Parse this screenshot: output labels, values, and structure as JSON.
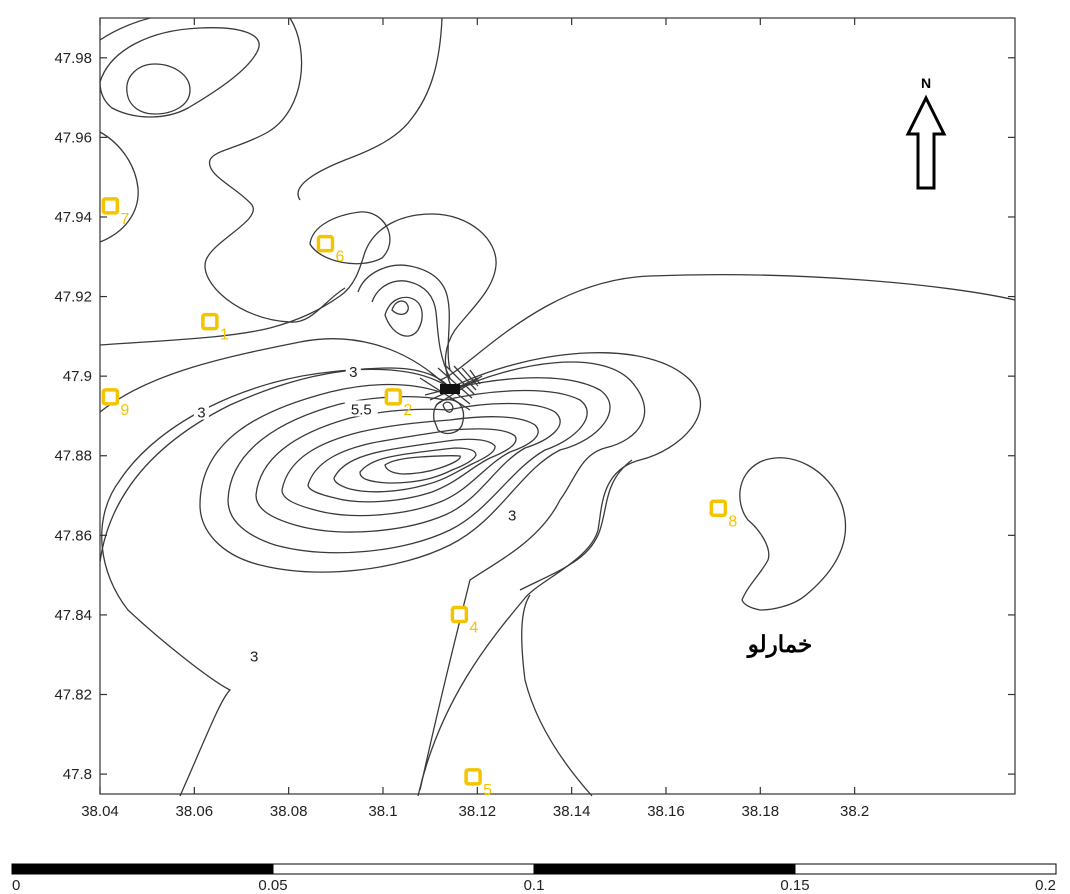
{
  "map": {
    "x_ticks": [
      "38.04",
      "38.06",
      "38.08",
      "38.1",
      "38.12",
      "38.14",
      "38.16",
      "38.18",
      "38.2"
    ],
    "y_ticks": [
      "47.98",
      "47.96",
      "47.94",
      "47.92",
      "47.9",
      "47.88",
      "47.86",
      "47.84",
      "47.82",
      "47.8"
    ],
    "x_range": [
      38.04,
      38.234
    ],
    "y_range": [
      47.795,
      47.99
    ],
    "north_label": "N",
    "place_name": "خمارلو",
    "contour_labels": [
      {
        "text": "3",
        "x": 38.0615,
        "y": 47.8906
      },
      {
        "text": "3",
        "x": 38.0937,
        "y": 47.9008
      },
      {
        "text": "5.5",
        "x": 38.0954,
        "y": 47.8914
      },
      {
        "text": "3",
        "x": 38.1274,
        "y": 47.8647
      },
      {
        "text": "3",
        "x": 38.0727,
        "y": 47.8293
      }
    ],
    "wells": [
      {
        "id": "1",
        "x": 38.0633,
        "y": 47.9137
      },
      {
        "id": "2",
        "x": 38.1022,
        "y": 47.8948
      },
      {
        "id": "4",
        "x": 38.1162,
        "y": 47.8401
      },
      {
        "id": "5",
        "x": 38.1191,
        "y": 47.7993
      },
      {
        "id": "6",
        "x": 38.0878,
        "y": 47.9333
      },
      {
        "id": "7",
        "x": 38.0422,
        "y": 47.9428
      },
      {
        "id": "8",
        "x": 38.1711,
        "y": 47.8668
      },
      {
        "id": "9",
        "x": 38.0422,
        "y": 47.8948
      }
    ],
    "scale_bar": {
      "labels": [
        "0",
        "0.05",
        "0.1",
        "0.15",
        "0.2"
      ]
    }
  }
}
